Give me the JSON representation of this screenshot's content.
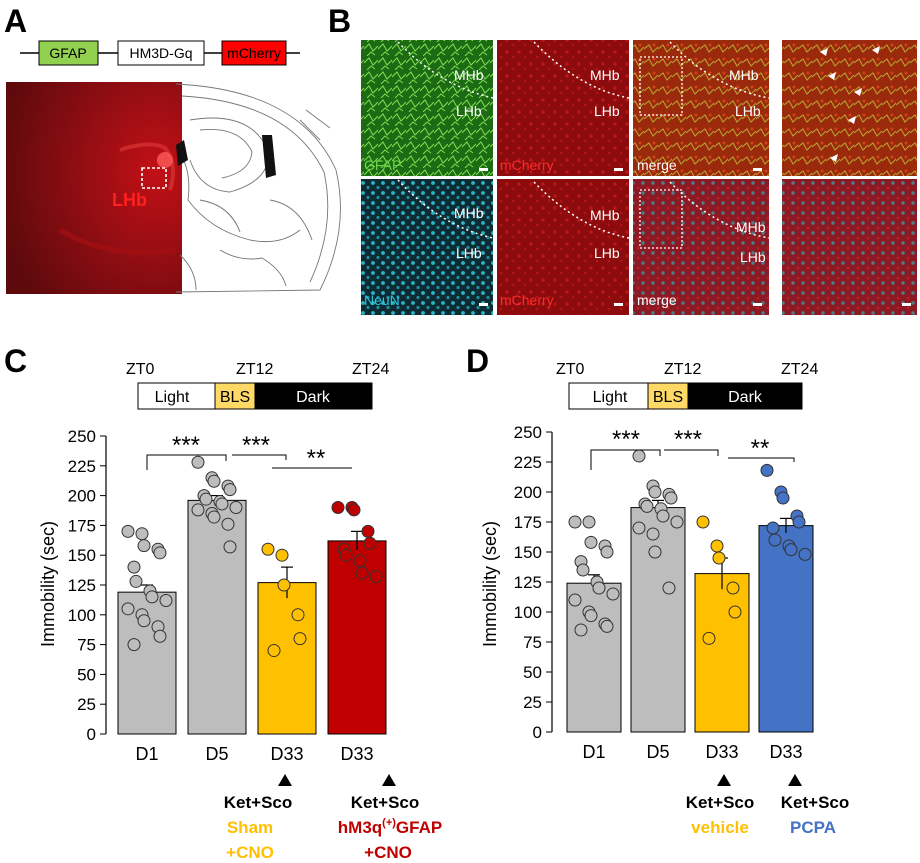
{
  "panels": {
    "A": {
      "letter": "A",
      "construct": [
        "GFAP",
        "HM3D-Gq",
        "mCherry"
      ],
      "region_label": "LHb"
    },
    "B": {
      "letter": "B",
      "top_row": [
        "GFAP",
        "mCherry",
        "merge"
      ],
      "bottom_row": [
        "NeuN",
        "mCherry",
        "merge"
      ],
      "region_mhb": "MHb",
      "region_lhb": "LHb"
    },
    "C": {
      "letter": "C",
      "timeline": {
        "zt0": "ZT0",
        "zt12": "ZT12",
        "zt24": "ZT24",
        "light": "Light",
        "bls": "BLS",
        "dark": "Dark"
      },
      "significance": [
        "***",
        "***",
        "**"
      ],
      "treatment_heading": "Ket+Sco",
      "group3": [
        "Sham",
        "+CNO"
      ],
      "group4": [
        "hM3q(+)GFAP",
        "+CNO"
      ]
    },
    "D": {
      "letter": "D",
      "timeline": {
        "zt0": "ZT0",
        "zt12": "ZT12",
        "zt24": "ZT24",
        "light": "Light",
        "bls": "BLS",
        "dark": "Dark"
      },
      "significance": [
        "***",
        "***",
        "**"
      ],
      "treatment_heading": "Ket+Sco",
      "group3": [
        "vehicle"
      ],
      "group4": [
        "PCPA"
      ]
    }
  },
  "colors": {
    "gray": "#bdbdbd",
    "yellow": "#ffc000",
    "red": "#c00000",
    "blue": "#4472c4",
    "green": "#92d050",
    "mcherry": "#ff0000",
    "bls": "#ffd966"
  },
  "chart_data": [
    {
      "type": "bar",
      "panel": "C",
      "categories": [
        "D1",
        "D5",
        "D33",
        "D33"
      ],
      "ylabel": "Immobility (sec)",
      "ylim": [
        0,
        250
      ],
      "yticks": [
        0,
        25,
        50,
        75,
        100,
        125,
        150,
        175,
        200,
        225,
        250
      ],
      "means": [
        119,
        196,
        127,
        162
      ],
      "sem": [
        6,
        4,
        13,
        8
      ],
      "points": [
        [
          170,
          168,
          158,
          155,
          152,
          140,
          128,
          120,
          115,
          112,
          105,
          100,
          95,
          90,
          82,
          75
        ],
        [
          228,
          215,
          212,
          208,
          205,
          200,
          197,
          195,
          193,
          190,
          188,
          185,
          182,
          176,
          157
        ],
        [
          155,
          150,
          125,
          100,
          80,
          70
        ],
        [
          190,
          190,
          188,
          170,
          160,
          155,
          150,
          145,
          135,
          132
        ]
      ],
      "bar_colors": [
        "#bdbdbd",
        "#bdbdbd",
        "#ffc000",
        "#c00000"
      ]
    },
    {
      "type": "bar",
      "panel": "D",
      "categories": [
        "D1",
        "D5",
        "D33",
        "D33"
      ],
      "ylabel": "Immobility (sec)",
      "ylim": [
        0,
        250
      ],
      "yticks": [
        0,
        25,
        50,
        75,
        100,
        125,
        150,
        175,
        200,
        225,
        250
      ],
      "means": [
        124,
        187,
        132,
        172
      ],
      "sem": [
        7,
        6,
        13,
        6
      ],
      "points": [
        [
          175,
          175,
          158,
          155,
          150,
          142,
          135,
          125,
          120,
          115,
          110,
          100,
          97,
          90,
          88,
          85
        ],
        [
          230,
          205,
          200,
          198,
          195,
          190,
          188,
          186,
          180,
          175,
          170,
          165,
          150,
          120
        ],
        [
          175,
          155,
          145,
          120,
          100,
          78
        ],
        [
          218,
          200,
          195,
          180,
          175,
          170,
          160,
          155,
          152,
          148
        ]
      ],
      "bar_colors": [
        "#bdbdbd",
        "#bdbdbd",
        "#ffc000",
        "#4472c4"
      ]
    }
  ]
}
